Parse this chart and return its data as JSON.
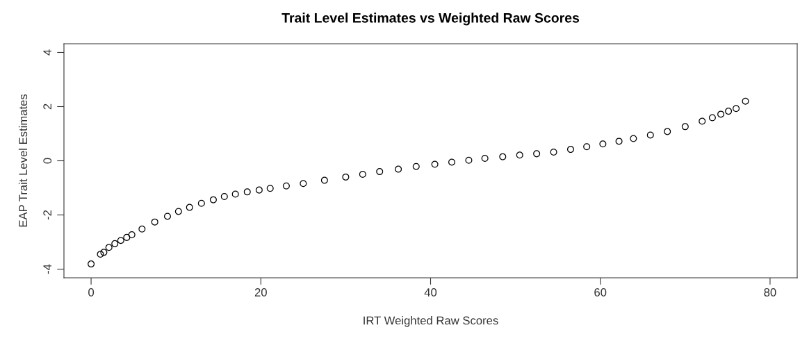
{
  "chart_data": {
    "type": "scatter",
    "title": "Trait Level Estimates vs Weighted Raw Scores",
    "xlabel": "IRT Weighted Raw Scores",
    "ylabel": "EAP Trait Level Estimates",
    "x": [
      0,
      1.1,
      1.5,
      2.1,
      2.8,
      3.5,
      4.2,
      4.8,
      6,
      7.5,
      9,
      10.3,
      11.6,
      13,
      14.4,
      15.7,
      17,
      18.4,
      19.8,
      21.1,
      23,
      25,
      27.5,
      30,
      32,
      34,
      36.2,
      38.3,
      40.5,
      42.5,
      44.5,
      46.4,
      48.5,
      50.5,
      52.5,
      54.5,
      56.5,
      58.4,
      60.3,
      62.2,
      63.9,
      65.9,
      67.9,
      70,
      72,
      73.2,
      74.2,
      75.1,
      76,
      77.1
    ],
    "series": [
      {
        "color": "#000000",
        "values": [
          -3.81,
          -3.45,
          -3.38,
          -3.2,
          -3.06,
          -2.94,
          -2.83,
          -2.73,
          -2.52,
          -2.26,
          -2.05,
          -1.87,
          -1.72,
          -1.57,
          -1.44,
          -1.32,
          -1.23,
          -1.15,
          -1.08,
          -1.02,
          -0.93,
          -0.84,
          -0.72,
          -0.6,
          -0.5,
          -0.4,
          -0.31,
          -0.21,
          -0.13,
          -0.05,
          0.02,
          0.09,
          0.15,
          0.21,
          0.26,
          0.32,
          0.42,
          0.52,
          0.62,
          0.72,
          0.82,
          0.95,
          1.08,
          1.26,
          1.46,
          1.59,
          1.72,
          1.83,
          1.93,
          2.2
        ]
      }
    ],
    "marker": "circle",
    "xlim": [
      -3.2,
      83.2
    ],
    "ylim": [
      -4.32,
      4.32
    ],
    "xticks": [
      0,
      20,
      40,
      60,
      80
    ],
    "yticks": [
      -4,
      -2,
      0,
      2,
      4
    ],
    "grid": false,
    "legend": false
  }
}
